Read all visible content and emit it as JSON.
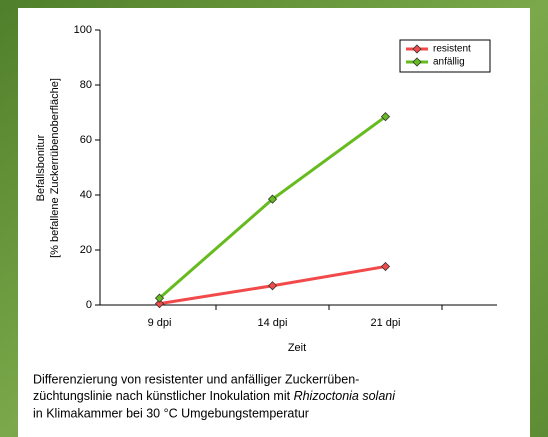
{
  "chart_data": {
    "type": "line",
    "categories": [
      "9 dpi",
      "14 dpi",
      "21 dpi"
    ],
    "series": [
      {
        "name": "resistent",
        "color": "#f24a4a",
        "values": [
          0.5,
          7,
          14
        ]
      },
      {
        "name": "anfällig",
        "color": "#66bb1e",
        "values": [
          2.5,
          38.5,
          68.5
        ]
      }
    ],
    "ylim": [
      0,
      100
    ],
    "yticks": [
      0,
      20,
      40,
      60,
      80,
      100
    ],
    "ylabel": [
      "Befallsbonitur",
      "[% befallene Zuckerrübenoberfläche]"
    ],
    "xlabel": "Zeit",
    "legend": "top-right"
  },
  "caption": {
    "line1": "Differenzierung von resistenter und anfälliger Zuckerrüben-",
    "line2": "züchtungslinie nach künstlicher Inokulation mit ",
    "line2_italic": "Rhizoctonia solani",
    "line3": "in Klimakammer bei 30 °C Umgebungstemperatur"
  }
}
